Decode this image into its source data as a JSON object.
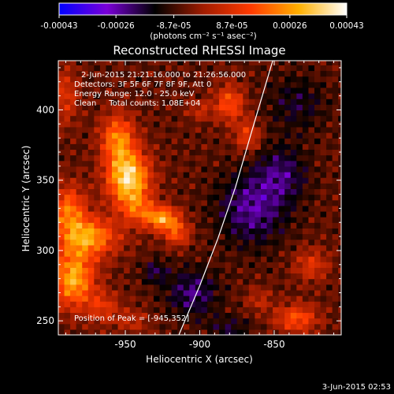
{
  "colorbar": {
    "tick_labels": [
      "-0.00043",
      "-0.00026",
      "-8.7e-05",
      "8.7e-05",
      "0.00026",
      "0.00043"
    ],
    "tick_values": [
      -0.00043,
      -0.00026,
      -8.7e-05,
      8.7e-05,
      0.00026,
      0.00043
    ],
    "range": [
      -0.00043,
      0.00043
    ],
    "units": "(photons cm⁻² s⁻¹ asec⁻²)",
    "colors": [
      "#0000ff",
      "#7a00d8",
      "#000000",
      "#a01c00",
      "#ff3a00",
      "#ffb000",
      "#ffffff"
    ]
  },
  "chart_data": {
    "type": "heatmap",
    "title": "Reconstructed RHESSI Image",
    "xlabel": "Heliocentric X (arcsec)",
    "ylabel": "Heliocentric Y (arcsec)",
    "xlim": [
      -995,
      -805
    ],
    "ylim": [
      240,
      435
    ],
    "xticks": [
      -950,
      -900,
      -850
    ],
    "xtick_labels": [
      "-950",
      "-900",
      "-850"
    ],
    "yticks": [
      250,
      300,
      350,
      400
    ],
    "ytick_labels": [
      "250",
      "300",
      "350",
      "400"
    ],
    "annotations": [
      "2-Jun-2015 21:21:16.000 to 21:26:56.000",
      "Detectors: 3F 5F 6F 7F 8F 9F, Att 0",
      "Energy Range: 12.0 - 25.0 keV",
      "Clean     Total counts: 1.08E+04",
      "Position of Peak = [-945,352]"
    ],
    "peak": {
      "x": -945,
      "y": 352
    },
    "limb": [
      [
        -914,
        240
      ],
      [
        -900,
        275
      ],
      [
        -888,
        308
      ],
      [
        -876,
        345
      ],
      [
        -865,
        385
      ],
      [
        -851,
        435
      ]
    ],
    "sources": [
      {
        "x": -948,
        "y": 352,
        "sx": 10,
        "sy": 13,
        "amp": 0.00043
      },
      {
        "x": -955,
        "y": 380,
        "sx": 8,
        "sy": 12,
        "amp": 0.00028
      },
      {
        "x": -942,
        "y": 330,
        "sx": 8,
        "sy": 8,
        "amp": 0.00018
      },
      {
        "x": -925,
        "y": 323,
        "sx": 8,
        "sy": 6,
        "amp": 0.00033
      },
      {
        "x": -915,
        "y": 312,
        "sx": 6,
        "sy": 6,
        "amp": 0.0002
      },
      {
        "x": -975,
        "y": 310,
        "sx": 14,
        "sy": 10,
        "amp": 0.00032
      },
      {
        "x": -985,
        "y": 280,
        "sx": 10,
        "sy": 14,
        "amp": 0.00035
      },
      {
        "x": -988,
        "y": 330,
        "sx": 8,
        "sy": 12,
        "amp": 0.00025
      },
      {
        "x": -990,
        "y": 410,
        "sx": 6,
        "sy": 14,
        "amp": 0.00015
      },
      {
        "x": -965,
        "y": 260,
        "sx": 8,
        "sy": 8,
        "amp": 0.00015
      },
      {
        "x": -945,
        "y": 250,
        "sx": 8,
        "sy": 6,
        "amp": 0.0001
      },
      {
        "x": -880,
        "y": 405,
        "sx": 7,
        "sy": 9,
        "amp": 0.00022
      },
      {
        "x": -868,
        "y": 382,
        "sx": 6,
        "sy": 8,
        "amp": 0.00017
      },
      {
        "x": -900,
        "y": 400,
        "sx": 6,
        "sy": 5,
        "amp": 0.00011
      },
      {
        "x": -835,
        "y": 252,
        "sx": 10,
        "sy": 7,
        "amp": 0.00022
      },
      {
        "x": -825,
        "y": 290,
        "sx": 8,
        "sy": 8,
        "amp": 0.00015
      },
      {
        "x": -860,
        "y": 265,
        "sx": 6,
        "sy": 6,
        "amp": 0.0001
      },
      {
        "x": -905,
        "y": 270,
        "sx": 12,
        "sy": 12,
        "amp": -0.00016
      },
      {
        "x": -930,
        "y": 285,
        "sx": 6,
        "sy": 6,
        "amp": -0.00012
      },
      {
        "x": -865,
        "y": 330,
        "sx": 16,
        "sy": 18,
        "amp": -0.00018
      },
      {
        "x": -845,
        "y": 355,
        "sx": 12,
        "sy": 14,
        "amp": -0.00014
      },
      {
        "x": -835,
        "y": 405,
        "sx": 14,
        "sy": 14,
        "amp": -0.0001
      },
      {
        "x": -880,
        "y": 245,
        "sx": 10,
        "sy": 6,
        "amp": -0.0001
      }
    ]
  },
  "footer": {
    "date": "3-Jun-2015 02:53"
  }
}
